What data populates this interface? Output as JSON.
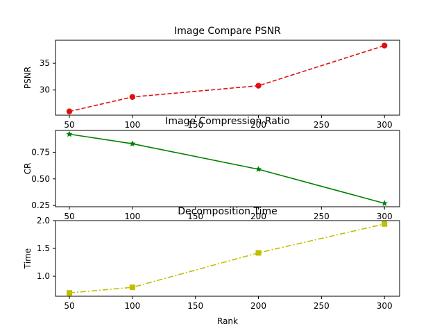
{
  "chart_data": [
    {
      "type": "line",
      "title": "Image Compare PSNR",
      "xlabel": "",
      "ylabel": "PSNR",
      "x": [
        50,
        100,
        200,
        300
      ],
      "xlim": [
        39,
        312
      ],
      "xticks": [
        50,
        100,
        150,
        200,
        250,
        300
      ],
      "ylim": [
        25.3,
        39.3
      ],
      "yticks": [
        30,
        35
      ],
      "grid": false,
      "series": [
        {
          "values": [
            26.0,
            28.7,
            30.8,
            38.3
          ],
          "color": "#e01010",
          "linestyle": "dashed",
          "marker": "circle"
        }
      ]
    },
    {
      "type": "line",
      "title": "Image Compression Ratio",
      "xlabel": "",
      "ylabel": "CR",
      "x": [
        50,
        100,
        200,
        300
      ],
      "xlim": [
        39,
        312
      ],
      "xticks": [
        50,
        100,
        150,
        200,
        250,
        300
      ],
      "ylim": [
        0.238,
        0.955
      ],
      "yticks": [
        0.25,
        0.5,
        0.75
      ],
      "ytick_labels": [
        "0.25",
        "0.50",
        "0.75"
      ],
      "grid": false,
      "series": [
        {
          "values": [
            0.92,
            0.83,
            0.59,
            0.27
          ],
          "color": "#008000",
          "linestyle": "solid",
          "marker": "star"
        }
      ]
    },
    {
      "type": "line",
      "title": "Decomposition Time",
      "xlabel": "Rank",
      "ylabel": "Time",
      "x": [
        50,
        100,
        200,
        300
      ],
      "xlim": [
        39,
        312
      ],
      "xticks": [
        50,
        100,
        150,
        200,
        250,
        300
      ],
      "ylim": [
        0.64,
        2.0
      ],
      "yticks": [
        1.0,
        1.5,
        2.0
      ],
      "ytick_labels": [
        "1.0",
        "1.5",
        "2.0"
      ],
      "grid": false,
      "series": [
        {
          "values": [
            0.7,
            0.8,
            1.42,
            1.94
          ],
          "color": "#bfbf00",
          "linestyle": "dashdot",
          "marker": "square"
        }
      ]
    }
  ]
}
